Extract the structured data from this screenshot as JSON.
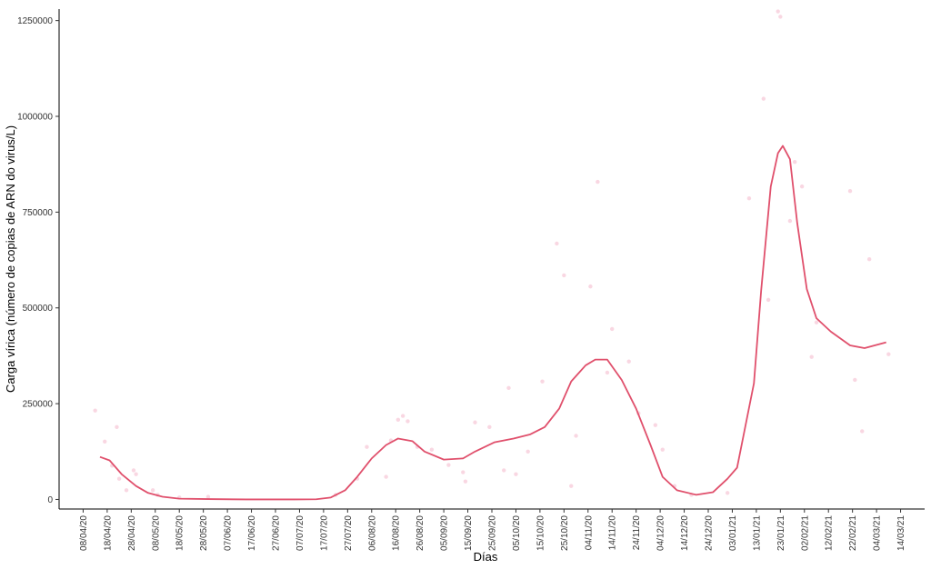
{
  "chart_data": {
    "type": "line",
    "xlabel": "Días",
    "ylabel": "Carga vírica (número de copias de ARN do virus/L)",
    "xlim": [
      "2020-03-29",
      "2021-03-24"
    ],
    "xticks": [
      {
        "value": "2020-04-08",
        "label": "08/04/20"
      },
      {
        "value": "2020-04-18",
        "label": "18/04/20"
      },
      {
        "value": "2020-04-28",
        "label": "28/04/20"
      },
      {
        "value": "2020-05-08",
        "label": "08/05/20"
      },
      {
        "value": "2020-05-18",
        "label": "18/05/20"
      },
      {
        "value": "2020-05-28",
        "label": "28/05/20"
      },
      {
        "value": "2020-06-07",
        "label": "07/06/20"
      },
      {
        "value": "2020-06-17",
        "label": "17/06/20"
      },
      {
        "value": "2020-06-27",
        "label": "27/06/20"
      },
      {
        "value": "2020-07-07",
        "label": "07/07/20"
      },
      {
        "value": "2020-07-17",
        "label": "17/07/20"
      },
      {
        "value": "2020-07-27",
        "label": "27/07/20"
      },
      {
        "value": "2020-08-06",
        "label": "06/08/20"
      },
      {
        "value": "2020-08-16",
        "label": "16/08/20"
      },
      {
        "value": "2020-08-26",
        "label": "26/08/20"
      },
      {
        "value": "2020-09-05",
        "label": "05/09/20"
      },
      {
        "value": "2020-09-15",
        "label": "15/09/20"
      },
      {
        "value": "2020-09-25",
        "label": "25/09/20"
      },
      {
        "value": "2020-10-05",
        "label": "05/10/20"
      },
      {
        "value": "2020-10-15",
        "label": "15/10/20"
      },
      {
        "value": "2020-10-25",
        "label": "25/10/20"
      },
      {
        "value": "2020-11-04",
        "label": "04/11/20"
      },
      {
        "value": "2020-11-14",
        "label": "14/11/20"
      },
      {
        "value": "2020-11-24",
        "label": "24/11/20"
      },
      {
        "value": "2020-12-04",
        "label": "04/12/20"
      },
      {
        "value": "2020-12-14",
        "label": "14/12/20"
      },
      {
        "value": "2020-12-24",
        "label": "24/12/20"
      },
      {
        "value": "2021-01-03",
        "label": "03/01/21"
      },
      {
        "value": "2021-01-13",
        "label": "13/01/21"
      },
      {
        "value": "2021-01-23",
        "label": "23/01/21"
      },
      {
        "value": "2021-02-02",
        "label": "02/02/21"
      },
      {
        "value": "2021-02-12",
        "label": "12/02/21"
      },
      {
        "value": "2021-02-22",
        "label": "22/02/21"
      },
      {
        "value": "2021-03-04",
        "label": "04/03/21"
      },
      {
        "value": "2021-03-14",
        "label": "14/03/21"
      }
    ],
    "ylim": [
      -25000,
      1280000
    ],
    "yticks": [
      0,
      250000,
      500000,
      750000,
      1000000,
      1250000
    ],
    "series": [
      {
        "type": "scatter",
        "color": "#f7c6d6",
        "x": [
          "2020-04-13",
          "2020-04-17",
          "2020-04-20",
          "2020-04-22",
          "2020-04-23",
          "2020-04-26",
          "2020-04-29",
          "2020-04-30",
          "2020-05-07",
          "2020-05-09",
          "2020-05-18",
          "2020-05-30",
          "2020-07-22",
          "2020-07-31",
          "2020-08-04",
          "2020-08-12",
          "2020-08-14",
          "2020-08-17",
          "2020-08-19",
          "2020-08-21",
          "2020-08-25",
          "2020-08-31",
          "2020-09-07",
          "2020-09-13",
          "2020-09-14",
          "2020-09-18",
          "2020-09-24",
          "2020-09-30",
          "2020-10-02",
          "2020-10-05",
          "2020-10-10",
          "2020-10-16",
          "2020-10-22",
          "2020-10-25",
          "2020-10-28",
          "2020-10-30",
          "2020-11-05",
          "2020-11-08",
          "2020-11-12",
          "2020-11-14",
          "2020-11-21",
          "2020-11-25",
          "2020-12-02",
          "2020-12-05",
          "2020-12-10",
          "2020-12-17",
          "2021-01-01",
          "2021-01-10",
          "2021-01-16",
          "2021-01-18",
          "2021-01-22",
          "2021-01-23",
          "2021-01-27",
          "2021-01-29",
          "2021-02-01",
          "2021-02-05",
          "2021-02-07",
          "2021-02-21",
          "2021-02-23",
          "2021-02-26",
          "2021-03-01",
          "2021-03-09"
        ],
        "values": [
          232000,
          151000,
          88000,
          189000,
          54000,
          24000,
          76000,
          66000,
          24000,
          12000,
          5000,
          7000,
          12000,
          54000,
          137000,
          59000,
          154000,
          208000,
          218000,
          204000,
          137000,
          130000,
          90000,
          71000,
          47000,
          201000,
          189000,
          76000,
          291000,
          66000,
          125000,
          308000,
          668000,
          585000,
          35000,
          166000,
          556000,
          829000,
          331000,
          445000,
          360000,
          225000,
          194000,
          130000,
          35000,
          12000,
          17000,
          786000,
          1046000,
          521000,
          1274000,
          1260000,
          727000,
          881000,
          817000,
          372000,
          462000,
          805000,
          312000,
          178000,
          627000,
          379000
        ]
      },
      {
        "type": "line",
        "color": "#e0506c",
        "x": [
          "2020-04-15",
          "2020-04-19",
          "2020-04-24",
          "2020-04-30",
          "2020-05-05",
          "2020-05-11",
          "2020-05-18",
          "2020-05-30",
          "2020-06-15",
          "2020-07-05",
          "2020-07-14",
          "2020-07-20",
          "2020-07-26",
          "2020-07-31",
          "2020-08-06",
          "2020-08-12",
          "2020-08-17",
          "2020-08-23",
          "2020-08-28",
          "2020-09-05",
          "2020-09-13",
          "2020-09-18",
          "2020-09-26",
          "2020-10-04",
          "2020-10-11",
          "2020-10-17",
          "2020-10-23",
          "2020-10-28",
          "2020-11-03",
          "2020-11-07",
          "2020-11-12",
          "2020-11-18",
          "2020-11-24",
          "2020-11-30",
          "2020-12-05",
          "2020-12-11",
          "2020-12-19",
          "2020-12-26",
          "2021-01-01",
          "2021-01-05",
          "2021-01-12",
          "2021-01-15",
          "2021-01-19",
          "2021-01-22",
          "2021-01-24",
          "2021-01-27",
          "2021-01-30",
          "2021-02-03",
          "2021-02-07",
          "2021-02-13",
          "2021-02-21",
          "2021-02-27",
          "2021-03-08"
        ],
        "values": [
          111000,
          102000,
          66000,
          35000,
          17000,
          7000,
          2000,
          1000,
          0,
          0,
          500,
          5000,
          24000,
          59000,
          107000,
          142000,
          159000,
          152000,
          125000,
          104000,
          107000,
          125000,
          149000,
          159000,
          170000,
          189000,
          237000,
          308000,
          350000,
          365000,
          365000,
          312000,
          237000,
          142000,
          59000,
          24000,
          12000,
          19000,
          54000,
          83000,
          303000,
          545000,
          817000,
          904000,
          923000,
          888000,
          722000,
          549000,
          473000,
          438000,
          402000,
          395000,
          410000
        ]
      }
    ]
  }
}
